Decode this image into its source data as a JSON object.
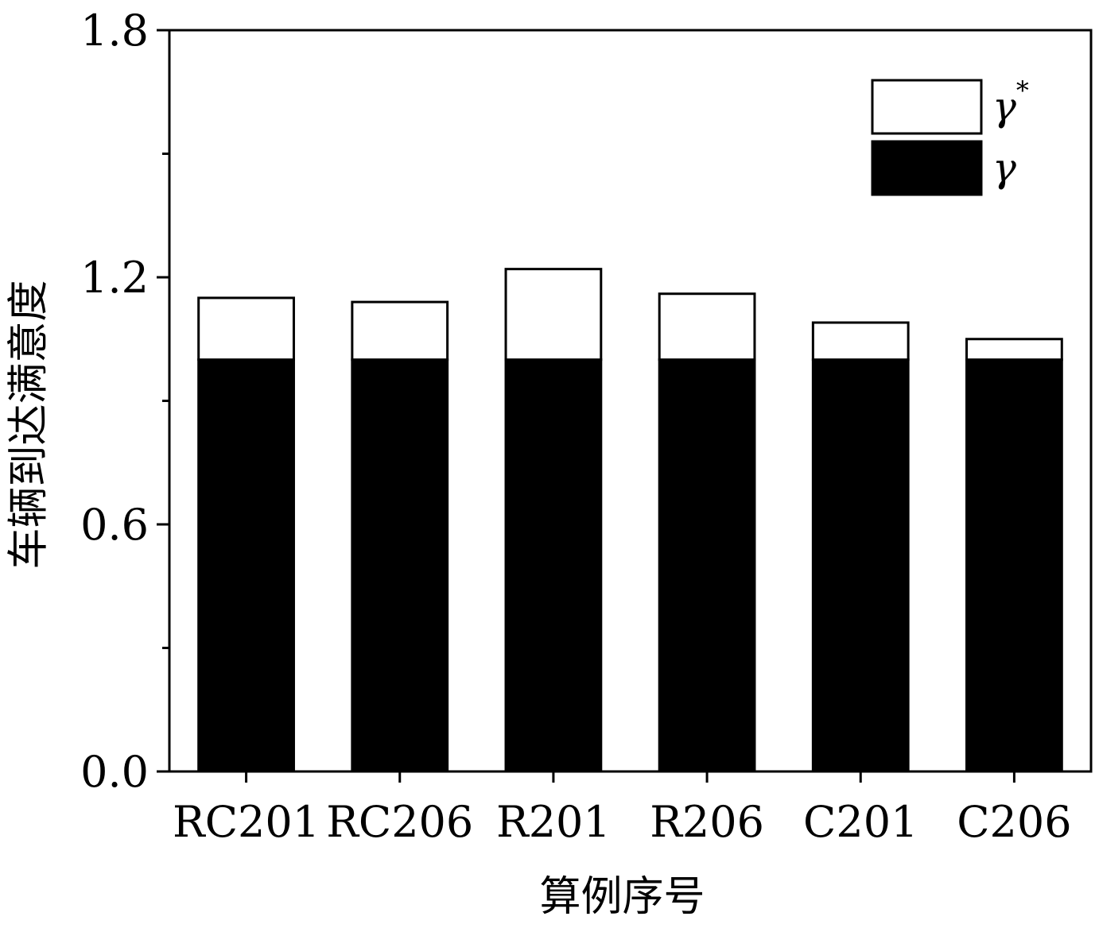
{
  "chart_data": {
    "type": "bar",
    "stacked": true,
    "categories": [
      "RC201",
      "RC206",
      "R201",
      "R206",
      "C201",
      "C206"
    ],
    "series": [
      {
        "name": "γ",
        "values": [
          1.0,
          1.0,
          1.0,
          1.0,
          1.0,
          1.0
        ],
        "color": "#000000"
      },
      {
        "name": "γ*",
        "values": [
          0.15,
          0.14,
          0.22,
          0.16,
          0.09,
          0.05
        ],
        "color": "#ffffff"
      }
    ],
    "xlabel": "算例序号",
    "ylabel": "车辆到达满意度",
    "ylim": [
      0,
      1.8
    ],
    "yticks": [
      "0.0",
      "0.6",
      "1.2",
      "1.8"
    ],
    "grid": false,
    "legend": {
      "position": "top-right",
      "entries": [
        {
          "symbol": "γ",
          "sup": "*",
          "fill": "#ffffff"
        },
        {
          "symbol": "γ",
          "sup": "",
          "fill": "#000000"
        }
      ]
    }
  }
}
